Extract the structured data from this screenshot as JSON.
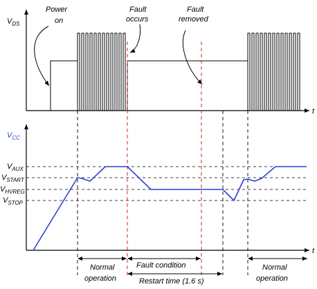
{
  "top_plot": {
    "y_label": "V",
    "y_label_sub": "DS",
    "x_label": "t",
    "annotations": [
      {
        "line1": "Power",
        "line2": "on"
      },
      {
        "line1": "Fault",
        "line2": "occurs"
      },
      {
        "line1": "Fault",
        "line2": "removed"
      }
    ]
  },
  "bottom_plot": {
    "y_label": "V",
    "y_label_sub": "CC",
    "x_label": "t",
    "levels": [
      {
        "name": "V",
        "sub": "AUX"
      },
      {
        "name": "V",
        "sub": "START"
      },
      {
        "name": "V",
        "sub": "HVREG"
      },
      {
        "name": "V",
        "sub": "STOP"
      }
    ]
  },
  "timing_labels": {
    "normal_1_line1": "Normal",
    "normal_1_line2": "operation",
    "fault_condition": "Fault condition",
    "restart_time": "Restart time (1.6 s)",
    "normal_2_line1": "Normal",
    "normal_2_line2": "operation"
  },
  "colors": {
    "axis": "#000000",
    "vcc_trace": "#2b3fd6",
    "fault_marker": "#e0201b",
    "guide": "#000000"
  }
}
